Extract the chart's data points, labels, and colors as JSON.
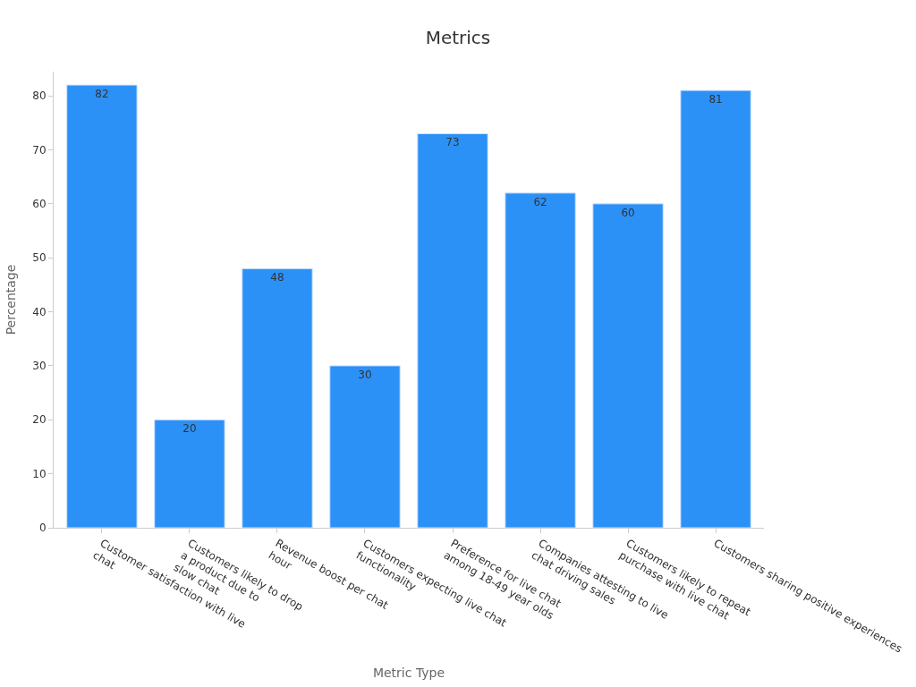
{
  "chart_data": {
    "type": "bar",
    "title": "Metrics",
    "xlabel": "Metric Type",
    "ylabel": "Percentage",
    "categories": [
      "Customer satisfaction with live\nchat",
      "Customers likely to drop\na product due to\nslow chat",
      "Revenue boost per chat\nhour",
      "Customers expecting live chat\nfunctionality",
      "Preference for live chat\namong 18-49 year olds",
      "Companies attesting to live\nchat driving sales",
      "Customers likely to repeat\npurchase with live chat",
      "Customers sharing positive experiences"
    ],
    "values": [
      82,
      20,
      48,
      30,
      73,
      62,
      60,
      81
    ],
    "color": "#2c91f7",
    "ylim": [
      0,
      84.5
    ],
    "yticks": [
      0,
      10,
      20,
      30,
      40,
      50,
      60,
      70,
      80
    ],
    "data_labels": true
  }
}
